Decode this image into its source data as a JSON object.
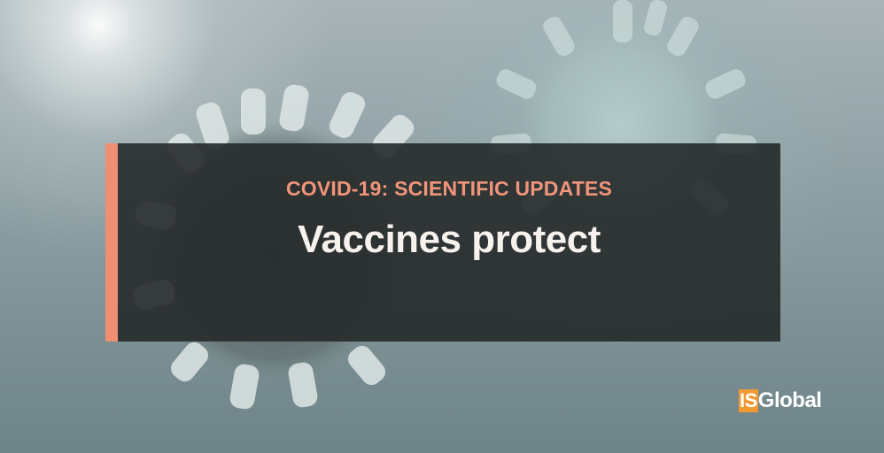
{
  "banner": {
    "kicker": "COVID-19: SCIENTIFIC UPDATES",
    "headline": "Vaccines protect"
  },
  "logo": {
    "part1": "IS",
    "part2": "Global"
  },
  "colors": {
    "accent": "#ee8f72",
    "kicker": "#f0957a",
    "banner_bg": "#262b2b",
    "logo_orange": "#f29a32"
  },
  "background": {
    "description_icon": "coronavirus-particle-icon"
  }
}
